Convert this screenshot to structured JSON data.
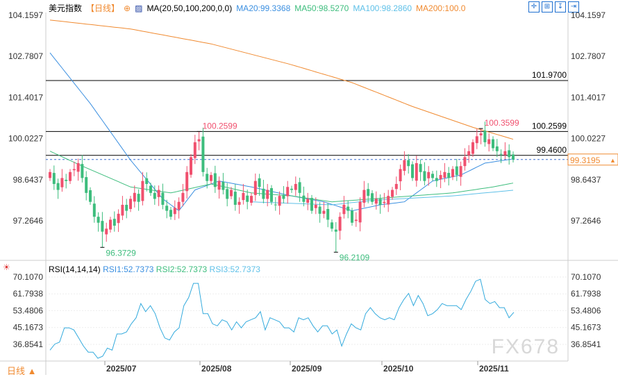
{
  "header": {
    "title": "美元指数",
    "period": "【日线】",
    "ma_label": "MA(20,50,100,200,0,0)",
    "ma20": "MA20:99.3368",
    "ma50": "MA50:98.5270",
    "ma100": "MA100:98.2860",
    "ma200": "MA200:100.0"
  },
  "rsi_header": {
    "label": "RSI(14,14,14)",
    "rsi1": "RSI1:52.7373",
    "rsi2": "RSI2:52.7373",
    "rsi3": "RSI3:52.7373"
  },
  "price_axis": [
    "104.1597",
    "102.7807",
    "101.4017",
    "100.0227",
    "98.6437",
    "97.2646"
  ],
  "rsi_axis": [
    "70.1070",
    "61.7938",
    "53.4806",
    "45.1673",
    "36.8541"
  ],
  "dates": [
    "2025/07",
    "2025/08",
    "2025/09",
    "2025/10",
    "2025/11"
  ],
  "levels": {
    "l1": "101.9700",
    "l2": "100.2599",
    "l3": "99.4600",
    "current": "99.3195"
  },
  "annotations": {
    "high1": "100.2599",
    "low1": "96.3729",
    "low2": "96.2109",
    "high2": "100.3599"
  },
  "period_button": "日线 ▲",
  "watermark": "FX678",
  "colors": {
    "up": "#f0506e",
    "down": "#3dbd7d",
    "ma20": "#3b8fe0",
    "ma50": "#3dbd7d",
    "ma100": "#5ec0e8",
    "ma200": "#f08a30",
    "rsi": "#33aadd"
  },
  "chart_data": {
    "type": "candlestick",
    "closes": [
      98.9,
      98.5,
      98.3,
      98.7,
      98.6,
      98.9,
      99.0,
      99.2,
      98.7,
      98.2,
      97.9,
      97.4,
      97.2,
      96.9,
      97.0,
      97.3,
      97.1,
      97.5,
      97.8,
      97.6,
      98.0,
      98.2,
      97.9,
      98.6,
      98.5,
      98.2,
      98.0,
      98.3,
      97.8,
      97.6,
      97.4,
      97.7,
      97.9,
      98.2,
      98.9,
      99.4,
      99.9,
      100.0,
      98.9,
      98.6,
      98.8,
      98.4,
      98.6,
      98.3,
      98.0,
      98.3,
      97.8,
      97.9,
      98.2,
      97.9,
      98.1,
      98.6,
      98.4,
      98.0,
      98.3,
      97.9,
      97.8,
      98.1,
      98.0,
      98.4,
      98.3,
      98.5,
      98.2,
      97.9,
      98.0,
      97.6,
      97.8,
      97.5,
      97.6,
      97.3,
      97.0,
      96.9,
      97.4,
      97.8,
      97.6,
      97.2,
      97.3,
      97.9,
      98.3,
      98.1,
      97.9,
      98.0,
      97.8,
      97.9,
      98.1,
      98.3,
      98.5,
      99.0,
      99.3,
      99.1,
      98.7,
      99.2,
      98.9,
      98.6,
      98.9,
      98.7,
      98.6,
      98.8,
      98.9,
      98.7,
      99.0,
      98.8,
      99.1,
      99.4,
      99.6,
      99.9,
      100.1,
      100.2,
      99.9,
      100.0,
      99.7,
      99.6,
      99.5,
      99.6,
      99.4,
      99.32
    ],
    "ma20": [
      [
        0,
        102.9
      ],
      [
        10,
        101.2
      ],
      [
        20,
        99.3
      ],
      [
        28,
        98.0
      ],
      [
        32,
        97.6
      ],
      [
        36,
        98.3
      ],
      [
        42,
        98.6
      ],
      [
        50,
        98.4
      ],
      [
        60,
        98.1
      ],
      [
        68,
        97.9
      ],
      [
        75,
        97.6
      ],
      [
        82,
        97.8
      ],
      [
        88,
        97.9
      ],
      [
        95,
        98.6
      ],
      [
        102,
        98.8
      ],
      [
        108,
        99.2
      ],
      [
        115,
        99.34
      ]
    ],
    "ma50": [
      [
        0,
        99.6
      ],
      [
        8,
        99.1
      ],
      [
        20,
        98.4
      ],
      [
        30,
        98.2
      ],
      [
        40,
        98.5
      ],
      [
        50,
        98.2
      ],
      [
        60,
        98.1
      ],
      [
        70,
        97.9
      ],
      [
        80,
        98.0
      ],
      [
        90,
        98.1
      ],
      [
        100,
        98.2
      ],
      [
        110,
        98.4
      ],
      [
        115,
        98.53
      ]
    ],
    "ma100": [
      [
        50,
        97.9
      ],
      [
        70,
        97.8
      ],
      [
        80,
        97.95
      ],
      [
        100,
        98.1
      ],
      [
        115,
        98.29
      ]
    ],
    "ma200": [
      [
        0,
        104.0
      ],
      [
        20,
        103.7
      ],
      [
        40,
        103.2
      ],
      [
        60,
        102.5
      ],
      [
        75,
        101.9
      ],
      [
        90,
        101.1
      ],
      [
        105,
        100.4
      ],
      [
        115,
        100.0
      ]
    ],
    "rsi": [
      34,
      37,
      38,
      45,
      45,
      44,
      40,
      36,
      33,
      33,
      30,
      31,
      35,
      34,
      42,
      42,
      43,
      47,
      50,
      57,
      53,
      56,
      52,
      45,
      40,
      39,
      43,
      45,
      56,
      60,
      67,
      67,
      52,
      52,
      47,
      46,
      49,
      48,
      44,
      48,
      45,
      48,
      49,
      50,
      53,
      44,
      50,
      49,
      48,
      45,
      45,
      43,
      50,
      49,
      50,
      46,
      43,
      46,
      46,
      42,
      44,
      36,
      42,
      47,
      45,
      44,
      52,
      55,
      52,
      50,
      49,
      50,
      49,
      55,
      59,
      62,
      56,
      61,
      57,
      51,
      52,
      54,
      57,
      56,
      56,
      56,
      54,
      59,
      63,
      68,
      69,
      59,
      57,
      58,
      55,
      55,
      50,
      52.7
    ],
    "ylim": [
      95.8,
      104.3
    ],
    "rsi_ylim": [
      30,
      72
    ]
  }
}
